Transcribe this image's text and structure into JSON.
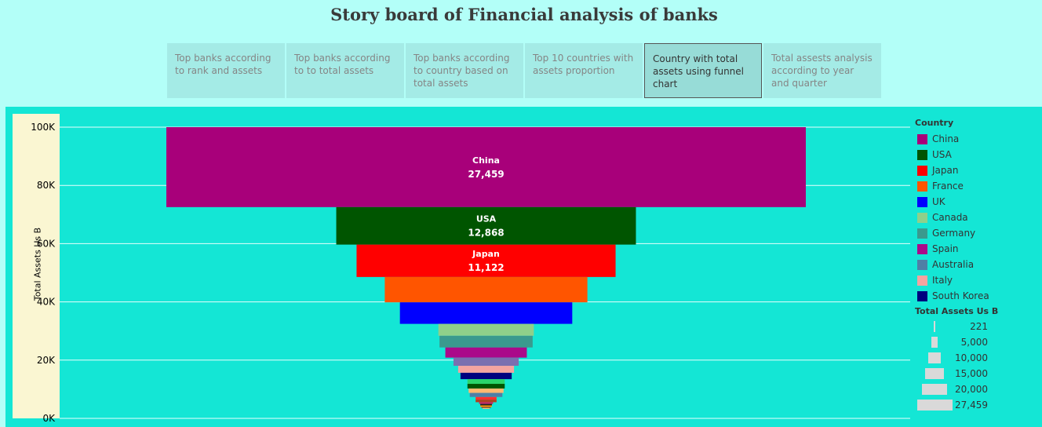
{
  "title": "Story board of  Financial analysis of banks",
  "tabs": [
    {
      "label": "Top banks according to rank and assets",
      "active": false
    },
    {
      "label": "Top banks according to to total assets",
      "active": false
    },
    {
      "label": "Top banks according to country based on total assets",
      "active": false
    },
    {
      "label": "Top 10 countries with assets proportion",
      "active": false
    },
    {
      "label": "Country with total assets using funnel chart",
      "active": true
    },
    {
      "label": "Total assests analysis according to year and quarter",
      "active": false
    }
  ],
  "legend": {
    "title": "Country",
    "items": [
      {
        "label": "China",
        "color": "#a8007a"
      },
      {
        "label": "USA",
        "color": "#005500"
      },
      {
        "label": "Japan",
        "color": "#ff0000"
      },
      {
        "label": "France",
        "color": "#ff5500"
      },
      {
        "label": "UK",
        "color": "#0000ff"
      },
      {
        "label": "Canada",
        "color": "#8fd08a"
      },
      {
        "label": "Germany",
        "color": "#3a9a8e"
      },
      {
        "label": "Spain",
        "color": "#aa0a8a"
      },
      {
        "label": "Australia",
        "color": "#4f7fa6"
      },
      {
        "label": "Italy",
        "color": "#f4a4a0"
      },
      {
        "label": "South Korea",
        "color": "#00007f"
      }
    ]
  },
  "size_legend": {
    "title": "Total Assets Us B",
    "items": [
      {
        "label": "221",
        "value": 221
      },
      {
        "label": "5,000",
        "value": 5000
      },
      {
        "label": "10,000",
        "value": 10000
      },
      {
        "label": "15,000",
        "value": 15000
      },
      {
        "label": "20,000",
        "value": 20000
      },
      {
        "label": "27,459",
        "value": 27459
      }
    ]
  },
  "chart_data": {
    "type": "bar",
    "subtype": "funnel",
    "xlabel": "",
    "ylabel": "Total Assets Us B",
    "ylim": [
      0,
      100000
    ],
    "yticks": [
      {
        "label": "100K",
        "value": 100000
      },
      {
        "label": "80K",
        "value": 80000
      },
      {
        "label": "60K",
        "value": 60000
      },
      {
        "label": "40K",
        "value": 40000
      },
      {
        "label": "20K",
        "value": 20000
      },
      {
        "label": "0K",
        "value": 0
      }
    ],
    "grid": true,
    "legend_position": "right",
    "segments": [
      {
        "country": "China",
        "value": 27459,
        "label": "27,459",
        "color": "#a8007a"
      },
      {
        "country": "USA",
        "value": 12868,
        "label": "12,868",
        "color": "#005500"
      },
      {
        "country": "Japan",
        "value": 11122,
        "label": "11,122",
        "color": "#ff0000"
      },
      {
        "country": "France",
        "value": 8700,
        "color": "#ff5500"
      },
      {
        "country": "UK",
        "value": 7400,
        "color": "#0000ff"
      },
      {
        "country": "Canada",
        "value": 4100,
        "color": "#8fd08a"
      },
      {
        "country": "Germany",
        "value": 4000,
        "color": "#3a9a8e"
      },
      {
        "country": "Spain",
        "value": 3500,
        "color": "#aa0a8a"
      },
      {
        "value": 2800,
        "color": "#7a70b0"
      },
      {
        "value": 2400,
        "color": "#f4a4a0"
      },
      {
        "value": 2200,
        "color": "#00007f"
      },
      {
        "value": 1600,
        "color": "#2ad46a"
      },
      {
        "value": 1600,
        "color": "#005500"
      },
      {
        "value": 1500,
        "color": "#ffb870"
      },
      {
        "value": 1400,
        "color": "#4f7fa6"
      },
      {
        "value": 900,
        "color": "#ff3030"
      },
      {
        "value": 900,
        "color": "#b04020"
      },
      {
        "value": 600,
        "color": "#cc2266"
      },
      {
        "value": 500,
        "color": "#222222"
      },
      {
        "value": 500,
        "color": "#ff9900"
      },
      {
        "value": 400,
        "color": "#8a4a2a"
      },
      {
        "value": 300,
        "color": "#f9c87a"
      }
    ]
  }
}
